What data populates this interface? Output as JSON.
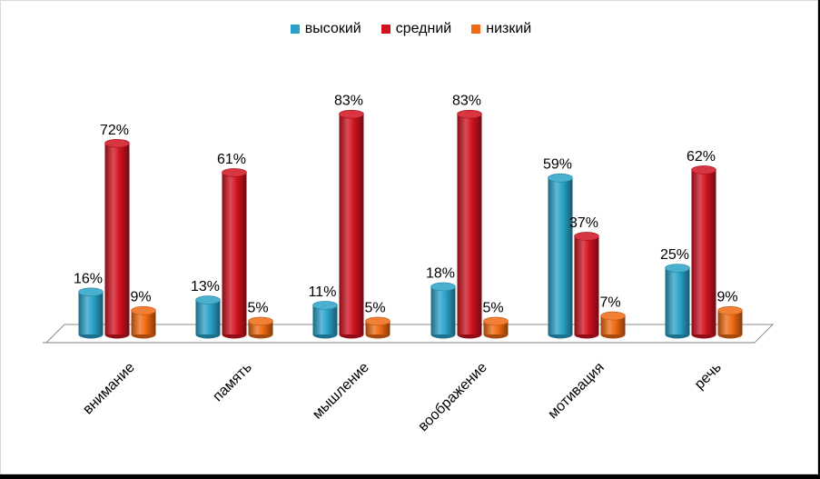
{
  "chart_data": {
    "type": "bar",
    "categories": [
      "внимание",
      "память",
      "мышление",
      "воображение",
      "мотивация",
      "речь"
    ],
    "series": [
      {
        "name": "высокий",
        "values": [
          16,
          13,
          11,
          18,
          59,
          25
        ],
        "color": "#2aa2c8"
      },
      {
        "name": "средний",
        "values": [
          72,
          61,
          83,
          83,
          37,
          62
        ],
        "color": "#d0121e"
      },
      {
        "name": "низкий",
        "values": [
          9,
          5,
          5,
          5,
          7,
          9
        ],
        "color": "#ef6a12"
      }
    ],
    "value_suffix": "%",
    "ylim": [
      0,
      100
    ],
    "grid": false,
    "legend_position": "top"
  }
}
